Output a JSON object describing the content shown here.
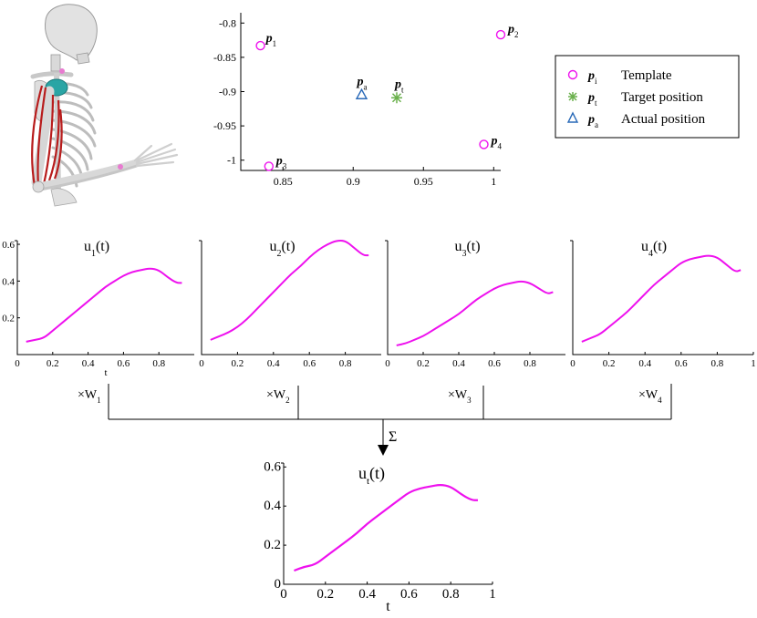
{
  "colors": {
    "magenta": "#ee11ee",
    "green": "#6ab04c",
    "blue": "#2a6ab8",
    "bone": "#e6e6e6",
    "muscle": "#b81c1c",
    "joint": "#2aa5a5"
  },
  "skeleton": {
    "icon": "arm-skeleton-figure"
  },
  "scatter": {
    "chart_data": {
      "type": "scatter",
      "xlim": [
        0.82,
        1.005
      ],
      "ylim": [
        -1.015,
        -0.785
      ],
      "xticks": [
        0.85,
        0.9,
        0.95,
        1
      ],
      "xtick_labels": [
        "0.85",
        "0.9",
        "0.95",
        "1"
      ],
      "yticks": [
        -0.8,
        -0.85,
        -0.9,
        -0.95,
        -1
      ],
      "ytick_labels": [
        "-0.8",
        "-0.85",
        "-0.9",
        "-0.95",
        "-1"
      ],
      "templates": [
        {
          "x": 0.834,
          "y": -0.833,
          "label": "p",
          "sub": "1"
        },
        {
          "x": 1.005,
          "y": -0.817,
          "label": "p",
          "sub": "2"
        },
        {
          "x": 0.84,
          "y": -1.009,
          "label": "p",
          "sub": "3"
        },
        {
          "x": 0.993,
          "y": -0.977,
          "label": "p",
          "sub": "4"
        }
      ],
      "target": {
        "x": 0.931,
        "y": -0.909,
        "label": "p",
        "sub": "t"
      },
      "actual": {
        "x": 0.906,
        "y": -0.905,
        "label": "p",
        "sub": "a"
      }
    },
    "legend": [
      {
        "marker": "circle",
        "label": "p",
        "sub": "i",
        "text": "Template"
      },
      {
        "marker": "star",
        "label": "p",
        "sub": "t",
        "text": "Target position"
      },
      {
        "marker": "triangle",
        "label": "p",
        "sub": "a",
        "text": "Actual position"
      }
    ]
  },
  "chart_data": [
    {
      "type": "line",
      "title": "u",
      "title_sub": "1",
      "title_suffix": "(t)",
      "xlabel": "t",
      "xlim": [
        0,
        1
      ],
      "ylim": [
        0,
        0.62
      ],
      "xticks": [
        0,
        0.2,
        0.4,
        0.6,
        0.8
      ],
      "xtick_labels": [
        "0",
        "0.2",
        "0.4",
        "0.6",
        "0.8"
      ],
      "yticks": [
        0.2,
        0.4,
        0.6
      ],
      "ytick_labels": [
        "0.2",
        "0.4",
        "0.6"
      ],
      "x": [
        0.05,
        0.1,
        0.15,
        0.2,
        0.25,
        0.3,
        0.35,
        0.4,
        0.45,
        0.5,
        0.55,
        0.6,
        0.65,
        0.7,
        0.75,
        0.8,
        0.85,
        0.9,
        0.93
      ],
      "y": [
        0.07,
        0.08,
        0.09,
        0.13,
        0.17,
        0.21,
        0.25,
        0.29,
        0.33,
        0.37,
        0.4,
        0.43,
        0.45,
        0.46,
        0.47,
        0.46,
        0.42,
        0.39,
        0.39
      ]
    },
    {
      "type": "line",
      "title": "u",
      "title_sub": "2",
      "title_suffix": "(t)",
      "xlabel": "",
      "xlim": [
        0,
        1
      ],
      "ylim": [
        0,
        0.62
      ],
      "xticks": [
        0,
        0.2,
        0.4,
        0.6,
        0.8
      ],
      "xtick_labels": [
        "0",
        "0.2",
        "0.4",
        "0.6",
        "0.8"
      ],
      "yticks": [],
      "ytick_labels": [],
      "x": [
        0.05,
        0.1,
        0.15,
        0.2,
        0.25,
        0.3,
        0.35,
        0.4,
        0.45,
        0.5,
        0.55,
        0.6,
        0.65,
        0.7,
        0.75,
        0.8,
        0.85,
        0.9,
        0.93
      ],
      "y": [
        0.08,
        0.1,
        0.12,
        0.15,
        0.19,
        0.24,
        0.29,
        0.34,
        0.39,
        0.44,
        0.48,
        0.53,
        0.57,
        0.6,
        0.62,
        0.62,
        0.58,
        0.54,
        0.54
      ]
    },
    {
      "type": "line",
      "title": "u",
      "title_sub": "3",
      "title_suffix": "(t)",
      "xlabel": "",
      "xlim": [
        0,
        1
      ],
      "ylim": [
        0,
        0.62
      ],
      "xticks": [
        0,
        0.2,
        0.4,
        0.6,
        0.8
      ],
      "xtick_labels": [
        "0",
        "0.2",
        "0.4",
        "0.6",
        "0.8"
      ],
      "yticks": [],
      "ytick_labels": [],
      "x": [
        0.05,
        0.1,
        0.15,
        0.2,
        0.25,
        0.3,
        0.35,
        0.4,
        0.45,
        0.5,
        0.55,
        0.6,
        0.65,
        0.7,
        0.75,
        0.8,
        0.85,
        0.9,
        0.93
      ],
      "y": [
        0.05,
        0.06,
        0.08,
        0.1,
        0.13,
        0.16,
        0.19,
        0.22,
        0.26,
        0.3,
        0.33,
        0.36,
        0.38,
        0.39,
        0.4,
        0.39,
        0.36,
        0.33,
        0.34
      ]
    },
    {
      "type": "line",
      "title": "u",
      "title_sub": "4",
      "title_suffix": "(t)",
      "xlabel": "",
      "xlim": [
        0,
        1
      ],
      "ylim": [
        0,
        0.62
      ],
      "xticks": [
        0,
        0.2,
        0.4,
        0.6,
        0.8,
        1
      ],
      "xtick_labels": [
        "0",
        "0.2",
        "0.4",
        "0.6",
        "0.8",
        "1"
      ],
      "yticks": [],
      "ytick_labels": [],
      "x": [
        0.05,
        0.1,
        0.15,
        0.2,
        0.25,
        0.3,
        0.35,
        0.4,
        0.45,
        0.5,
        0.55,
        0.6,
        0.65,
        0.7,
        0.75,
        0.8,
        0.85,
        0.9,
        0.93
      ],
      "y": [
        0.07,
        0.09,
        0.11,
        0.15,
        0.19,
        0.23,
        0.28,
        0.33,
        0.38,
        0.42,
        0.46,
        0.5,
        0.52,
        0.53,
        0.54,
        0.53,
        0.49,
        0.45,
        0.46
      ]
    },
    {
      "type": "line",
      "title": "u",
      "title_sub": "t",
      "title_suffix": "(t)",
      "xlabel": "t",
      "xlim": [
        0,
        1
      ],
      "ylim": [
        0,
        0.62
      ],
      "xticks": [
        0,
        0.2,
        0.4,
        0.6,
        0.8,
        1
      ],
      "xtick_labels": [
        "0",
        "0.2",
        "0.4",
        "0.6",
        "0.8",
        "1"
      ],
      "yticks": [
        0,
        0.2,
        0.4,
        0.6
      ],
      "ytick_labels": [
        "0",
        "0.2",
        "0.4",
        "0.6"
      ],
      "x": [
        0.05,
        0.1,
        0.15,
        0.2,
        0.25,
        0.3,
        0.35,
        0.4,
        0.45,
        0.5,
        0.55,
        0.6,
        0.65,
        0.7,
        0.75,
        0.8,
        0.85,
        0.9,
        0.93
      ],
      "y": [
        0.07,
        0.09,
        0.1,
        0.14,
        0.18,
        0.22,
        0.26,
        0.31,
        0.35,
        0.39,
        0.43,
        0.47,
        0.49,
        0.5,
        0.51,
        0.5,
        0.46,
        0.43,
        0.43
      ]
    }
  ],
  "weights": [
    {
      "prefix": "×W",
      "sub": "1"
    },
    {
      "prefix": "×W",
      "sub": "2"
    },
    {
      "prefix": "×W",
      "sub": "3"
    },
    {
      "prefix": "×W",
      "sub": "4"
    }
  ],
  "sum_symbol": "Σ"
}
